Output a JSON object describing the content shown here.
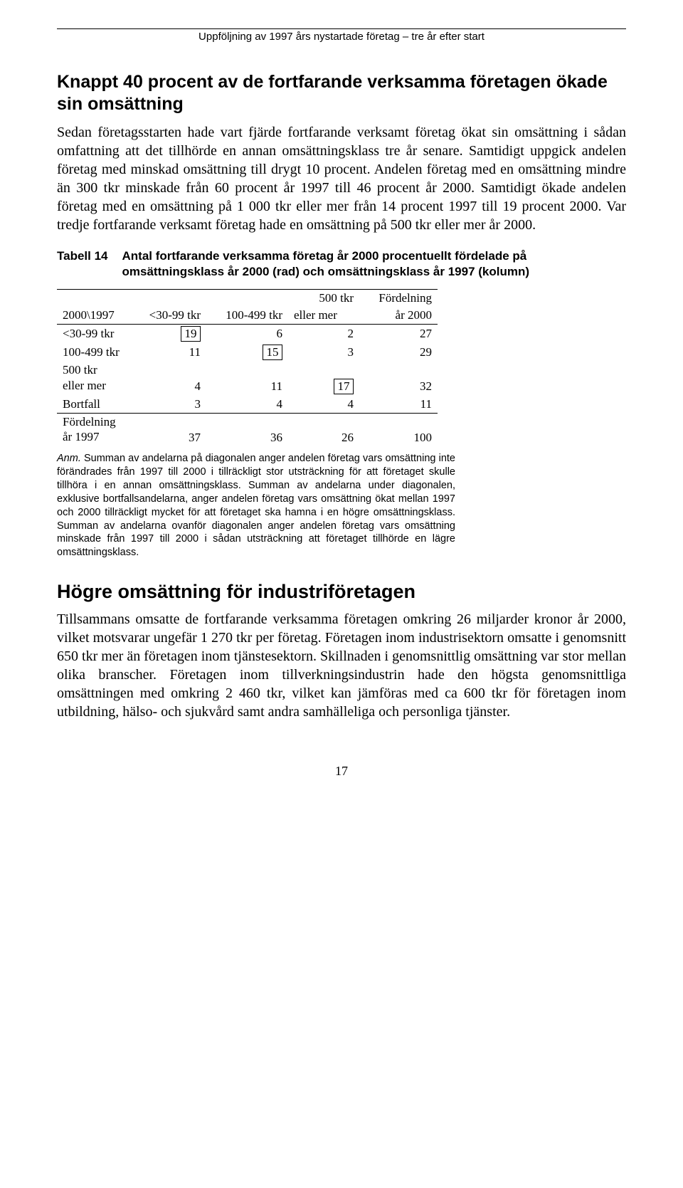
{
  "running_head": "Uppföljning av 1997 års nystartade företag – tre år efter start",
  "heading1": "Knappt 40 procent av de fortfarande verksamma företagen ökade sin omsättning",
  "para1": "Sedan företagsstarten hade vart fjärde fortfarande verksamt företag ökat sin omsättning i sådan omfattning att det tillhörde en annan omsättningsklass tre år senare. Samtidigt uppgick andelen företag med minskad omsättning till drygt 10 procent. Andelen företag med en omsättning mindre än 300 tkr minskade från 60 procent år 1997 till 46 procent år 2000. Samtidigt ökade andelen företag med en omsättning på 1 000 tkr eller mer från 14 procent 1997 till 19 procent 2000. Var tredje fortfarande verksamt företag hade en omsättning på 500 tkr eller mer år 2000.",
  "table14": {
    "label": "Tabell 14",
    "caption": "Antal fortfarande verksamma företag år 2000 procentuellt fördelade på omsättningsklass år 2000 (rad) och omsättningsklass år 1997 (kolumn)",
    "head_rowcol": "2000\\1997",
    "head_c1": "<30-99 tkr",
    "head_c2": "100-499 tkr",
    "head_c3a": "500 tkr",
    "head_c3b": "eller mer",
    "head_c4a": "Fördelning",
    "head_c4b": "år 2000",
    "r1_label": "<30-99 tkr",
    "r1_c1": "19",
    "r1_c2": "6",
    "r1_c3": "2",
    "r1_c4": "27",
    "r2_label": "100-499 tkr",
    "r2_c1": "11",
    "r2_c2": "15",
    "r2_c3": "3",
    "r2_c4": "29",
    "r3_labela": "500 tkr",
    "r3_labelb": "eller mer",
    "r3_c1": "4",
    "r3_c2": "11",
    "r3_c3": "17",
    "r3_c4": "32",
    "r4_label": "Bortfall",
    "r4_c1": "3",
    "r4_c2": "4",
    "r4_c3": "4",
    "r4_c4": "11",
    "r5_labela": "Fördelning",
    "r5_labelb": "år 1997",
    "r5_c1": "37",
    "r5_c2": "36",
    "r5_c3": "26",
    "r5_c4": "100"
  },
  "anm_lead": "Anm.",
  "anm_text": " Summan av andelarna på diagonalen anger andelen företag vars omsättning inte förändrades från 1997 till 2000 i tillräckligt stor utsträckning för att företaget skulle tillhöra i en annan omsättningsklass. Summan av andelarna under diagonalen, exklusive bortfallsandelarna, anger andelen företag vars omsättning ökat mellan 1997 och 2000 tillräckligt mycket för att företaget ska hamna i en högre omsättningsklass. Summan av andelarna ovanför diagonalen anger andelen företag vars omsättning minskade från 1997 till 2000 i sådan utsträckning att företaget tillhörde en lägre omsättningsklass.",
  "heading2": "Högre omsättning för industriföretagen",
  "para2": "Tillsammans omsatte de fortfarande verksamma företagen omkring 26 miljarder kronor år 2000, vilket motsvarar ungefär 1 270 tkr per företag. Företagen inom industrisektorn omsatte i genomsnitt 650 tkr mer än företagen inom tjänstesektorn. Skillnaden i genomsnittlig omsättning var stor mellan olika branscher. Företagen inom tillverkningsindustrin hade den högsta genomsnittliga omsättningen med omkring 2 460 tkr, vilket kan jämföras med ca 600 tkr för företagen inom utbildning, hälso- och sjukvård samt andra samhälleliga och personliga tjänster.",
  "page_number": "17"
}
